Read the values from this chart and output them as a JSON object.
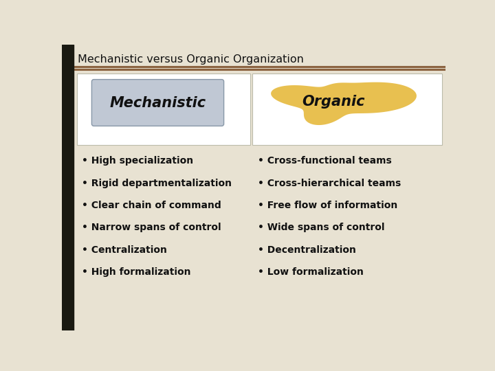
{
  "title": "Mechanistic versus Organic Organization",
  "bg_color": "#e8e2d2",
  "sidebar_color": "#1a1a12",
  "title_color": "#111111",
  "title_fontsize": 11.5,
  "line_color": "#8B6340",
  "mech_label": "Mechanistic",
  "org_label": "Organic",
  "mech_box_color": "#c0c8d4",
  "mech_box_edge": "#a0a8b4",
  "mech_panel_color": "#f5f0e8",
  "org_panel_color": "#f5f0e8",
  "org_blob_color": "#e8c050",
  "left_items": [
    "• High specialization",
    "• Rigid departmentalization",
    "• Clear chain of command",
    "• Narrow spans of control",
    "• Centralization",
    "• High formalization"
  ],
  "right_items": [
    "• Cross-functional teams",
    "• Cross-hierarchical teams",
    "• Free flow of information",
    "• Wide spans of control",
    "• Decentralization",
    "• Low formalization"
  ],
  "item_fontsize": 10,
  "header_fontsize": 15
}
